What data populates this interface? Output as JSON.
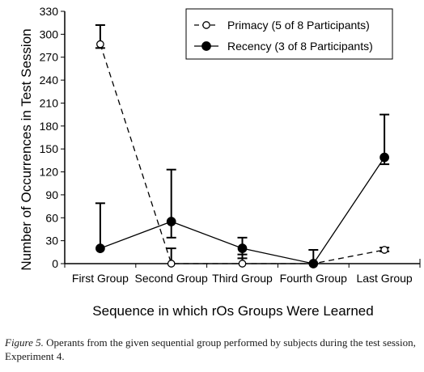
{
  "chart_data": {
    "type": "line",
    "categories": [
      "First Group",
      "Second Group",
      "Third Group",
      "Fourth Group",
      "Last Group"
    ],
    "xlabel": "Sequence in which rOs Groups Were Learned",
    "ylabel": "Number of Occurrences in Test Session",
    "ylim": [
      0,
      330
    ],
    "yticks": [
      "0",
      "30",
      "60",
      "90",
      "120",
      "150",
      "180",
      "210",
      "240",
      "270",
      "300",
      "330"
    ],
    "grid": false,
    "legend_position": "top-right",
    "series": [
      {
        "name": "Primacy (5 of 8 Participants)",
        "marker": "open-circle",
        "line": "dashed",
        "values": [
          287,
          0,
          0,
          0,
          18
        ],
        "error_high": [
          312,
          20,
          12,
          18,
          21
        ],
        "error_low": [
          282,
          0,
          0,
          0,
          16
        ]
      },
      {
        "name": "Recency (3 of 8 Participants)",
        "marker": "filled-circle",
        "line": "solid",
        "values": [
          20,
          55,
          20,
          0,
          139
        ],
        "error_high": [
          79,
          123,
          34,
          0,
          195
        ],
        "error_low": [
          20,
          34,
          7,
          0,
          130
        ]
      }
    ]
  },
  "caption": {
    "figure_label": "Figure 5.",
    "text": " Operants from the given sequential group performed by subjects during the test session, Experiment 4."
  }
}
